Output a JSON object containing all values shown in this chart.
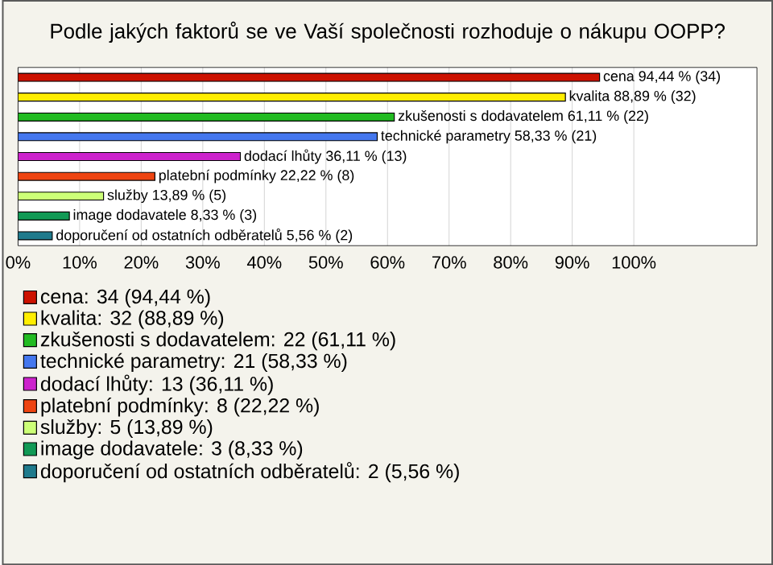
{
  "chart_data": {
    "type": "bar",
    "orientation": "horizontal",
    "title": "Podle jakých faktorů se ve Vaší společnosti rozhoduje o nákupu OOPP?",
    "categories": [
      null,
      null,
      null,
      null,
      null,
      null,
      null,
      null,
      null
    ],
    "series": [
      {
        "name": "cena: 34 (94,44 %)",
        "color": "#cc1100",
        "values": [
          94.44,
          null,
          null,
          null,
          null,
          null,
          null,
          null,
          null
        ],
        "value_labels": [
          "cena 94,44 % (34)",
          null,
          null,
          null,
          null,
          null,
          null,
          null,
          null
        ]
      },
      {
        "name": "kvalita: 32 (88,89 %)",
        "color": "#ffee00",
        "values": [
          null,
          88.89,
          null,
          null,
          null,
          null,
          null,
          null,
          null
        ],
        "value_labels": [
          null,
          "kvalita 88,89 % (32)",
          null,
          null,
          null,
          null,
          null,
          null,
          null
        ]
      },
      {
        "name": "zkušenosti s dodavatelem: 22 (61,11 %)",
        "color": "#22bb22",
        "values": [
          null,
          null,
          61.11,
          null,
          null,
          null,
          null,
          null,
          null
        ],
        "value_labels": [
          null,
          null,
          "zkušenosti s dodavatelem 61,11 % (22)",
          null,
          null,
          null,
          null,
          null,
          null
        ]
      },
      {
        "name": "technické parametry: 21 (58,33 %)",
        "color": "#4477ee",
        "values": [
          null,
          null,
          null,
          58.33,
          null,
          null,
          null,
          null,
          null
        ],
        "value_labels": [
          null,
          null,
          null,
          "technické parametry 58,33 % (21)",
          null,
          null,
          null,
          null,
          null
        ]
      },
      {
        "name": "dodací lhůty: 13 (36,11 %)",
        "color": "#cc22cc",
        "values": [
          null,
          null,
          null,
          null,
          36.11,
          null,
          null,
          null,
          null
        ],
        "value_labels": [
          null,
          null,
          null,
          null,
          "dodací lhůty 36,11 % (13)",
          null,
          null,
          null,
          null
        ]
      },
      {
        "name": "platební podmínky: 8 (22,22 %)",
        "color": "#ee4411",
        "values": [
          null,
          null,
          null,
          null,
          null,
          22.22,
          null,
          null,
          null
        ],
        "value_labels": [
          null,
          null,
          null,
          null,
          null,
          "platební podmínky 22,22 % (8)",
          null,
          null,
          null
        ]
      },
      {
        "name": "služby: 5 (13,89 %)",
        "color": "#ccff77",
        "values": [
          null,
          null,
          null,
          null,
          null,
          null,
          13.89,
          null,
          null
        ],
        "value_labels": [
          null,
          null,
          null,
          null,
          null,
          null,
          "služby 13,89 % (5)",
          null,
          null
        ]
      },
      {
        "name": "image dodavatele: 3 (8,33 %)",
        "color": "#119955",
        "values": [
          null,
          null,
          null,
          null,
          null,
          null,
          null,
          8.33,
          null
        ],
        "value_labels": [
          null,
          null,
          null,
          null,
          null,
          null,
          null,
          "image dodavatele 8,33 % (3)",
          null
        ]
      },
      {
        "name": "doporučení od ostatních odběratelů: 2 (5,56 %)",
        "color": "#1f7a8c",
        "values": [
          null,
          null,
          null,
          null,
          null,
          null,
          null,
          null,
          5.56
        ],
        "value_labels": [
          null,
          null,
          null,
          null,
          null,
          null,
          null,
          null,
          "doporučení od ostatních odběratelů 5,56 % (2)"
        ]
      }
    ],
    "xlim": [
      0,
      120
    ],
    "xticks": [
      {
        "value": 0,
        "label": "0%"
      },
      {
        "value": 10,
        "label": "10%"
      },
      {
        "value": 20,
        "label": "20%"
      },
      {
        "value": 30,
        "label": "30%"
      },
      {
        "value": 40,
        "label": "40%"
      },
      {
        "value": 50,
        "label": "50%"
      },
      {
        "value": 60,
        "label": "60%"
      },
      {
        "value": 70,
        "label": "70%"
      },
      {
        "value": 80,
        "label": "80%"
      },
      {
        "value": 90,
        "label": "90%"
      },
      {
        "value": 100,
        "label": "100%"
      }
    ],
    "grid": "x",
    "legend": "bottom"
  }
}
